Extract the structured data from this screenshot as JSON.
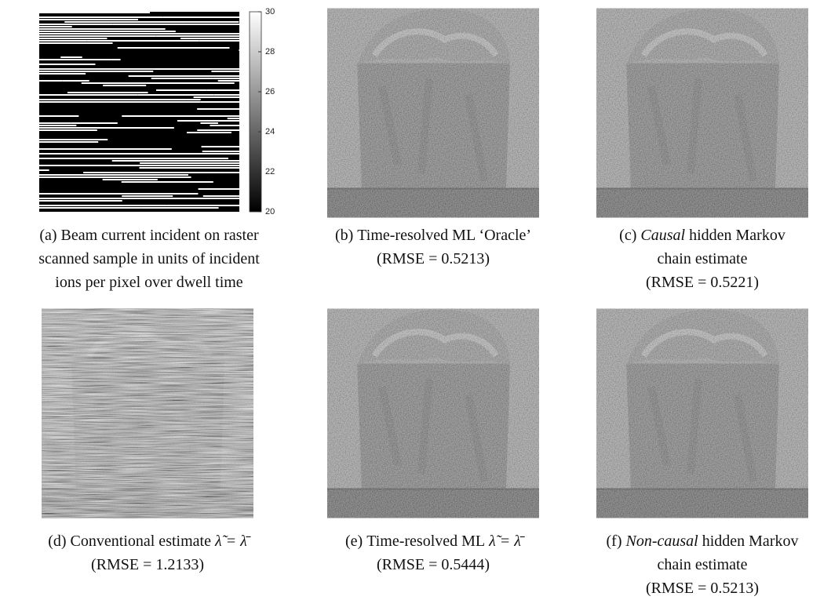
{
  "colorbar": {
    "lim": [
      20,
      30
    ],
    "ticks": [
      20,
      22,
      24,
      26,
      28,
      30
    ]
  },
  "panels": [
    {
      "label": "(a)",
      "lines": [
        "Beam current incident on raster",
        "scanned sample in units of incident",
        "ions per pixel over dwell time"
      ]
    },
    {
      "label": "(b)",
      "lines": [
        "Time-resolved ML ‘Oracle’",
        "(RMSE = 0.5213)"
      ]
    },
    {
      "label": "(c)",
      "emphasis": "Causal",
      "lines": [
        "hidden Markov",
        "chain estimate",
        "(RMSE = 0.5221)"
      ]
    },
    {
      "label": "(d)",
      "lines": [
        "Conventional estimate",
        "(RMSE = 1.2133)"
      ],
      "math": "λ̃ = λ̄"
    },
    {
      "label": "(e)",
      "lines": [
        "Time-resolved ML",
        "(RMSE = 0.5444)"
      ],
      "math": "λ̃ = λ̄"
    },
    {
      "label": "(f)",
      "emphasis": "Non-causal",
      "lines": [
        "hidden Markov",
        "chain estimate",
        "(RMSE = 0.5213)"
      ]
    }
  ]
}
